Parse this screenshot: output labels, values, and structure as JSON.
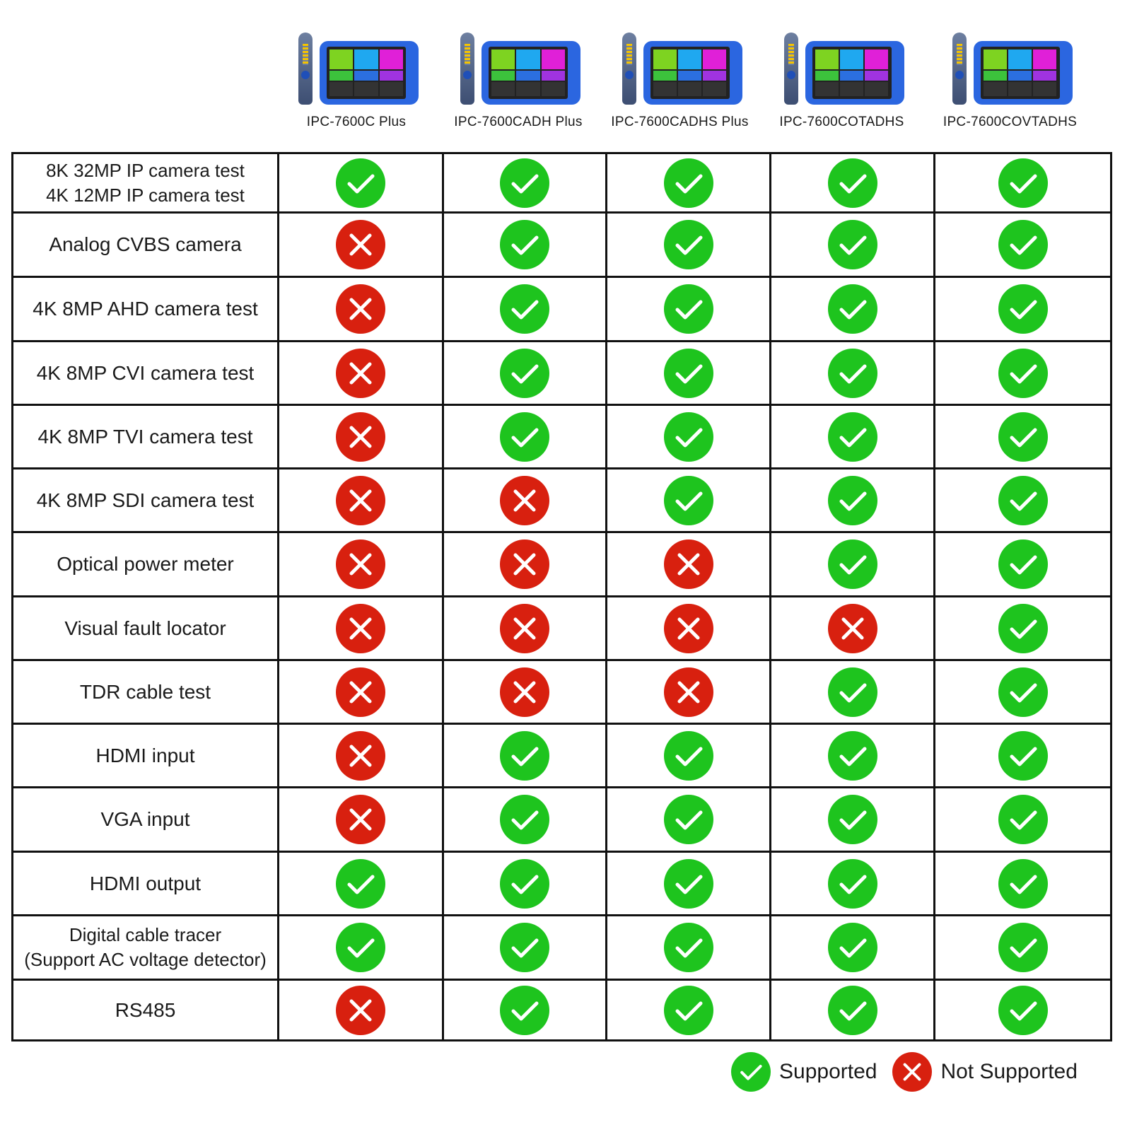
{
  "colors": {
    "supported": "#1ec41e",
    "not_supported": "#d8200f",
    "border": "#111111",
    "device_blue": "#2b66e0"
  },
  "icons": {
    "supported": "check-circle-icon",
    "not_supported": "x-circle-icon"
  },
  "models": [
    "IPC-7600C Plus",
    "IPC-7600CADH Plus",
    "IPC-7600CADHS Plus",
    "IPC-7600COTADHS",
    "IPC-7600COVTADHS"
  ],
  "features": [
    {
      "label": [
        "8K 32MP IP camera test",
        "4K 12MP IP camera test"
      ],
      "support": [
        true,
        true,
        true,
        true,
        true
      ]
    },
    {
      "label": [
        "Analog CVBS camera"
      ],
      "support": [
        false,
        true,
        true,
        true,
        true
      ]
    },
    {
      "label": [
        "4K 8MP AHD camera test"
      ],
      "support": [
        false,
        true,
        true,
        true,
        true
      ]
    },
    {
      "label": [
        "4K 8MP CVI camera test"
      ],
      "support": [
        false,
        true,
        true,
        true,
        true
      ]
    },
    {
      "label": [
        "4K 8MP TVI camera test"
      ],
      "support": [
        false,
        true,
        true,
        true,
        true
      ]
    },
    {
      "label": [
        "4K 8MP SDI camera test"
      ],
      "support": [
        false,
        false,
        true,
        true,
        true
      ]
    },
    {
      "label": [
        "Optical power meter"
      ],
      "support": [
        false,
        false,
        false,
        true,
        true
      ]
    },
    {
      "label": [
        "Visual fault locator"
      ],
      "support": [
        false,
        false,
        false,
        false,
        true
      ]
    },
    {
      "label": [
        "TDR cable test"
      ],
      "support": [
        false,
        false,
        false,
        true,
        true
      ]
    },
    {
      "label": [
        "HDMI input"
      ],
      "support": [
        false,
        true,
        true,
        true,
        true
      ]
    },
    {
      "label": [
        "VGA input"
      ],
      "support": [
        false,
        true,
        true,
        true,
        true
      ]
    },
    {
      "label": [
        "HDMI output"
      ],
      "support": [
        true,
        true,
        true,
        true,
        true
      ]
    },
    {
      "label": [
        "Digital cable tracer",
        "(Support AC voltage detector)"
      ],
      "support": [
        true,
        true,
        true,
        true,
        true
      ]
    },
    {
      "label": [
        "RS485"
      ],
      "support": [
        false,
        true,
        true,
        true,
        true
      ]
    }
  ],
  "legend": {
    "supported": "Supported",
    "not_supported": "Not Supported"
  }
}
